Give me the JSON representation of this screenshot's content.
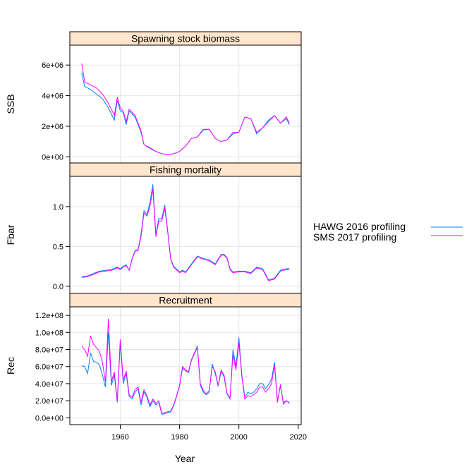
{
  "colors": {
    "strip": "#ffe5cc",
    "grid": "#e6e6e6",
    "series_a": "#0080ff",
    "series_b": "#ff00ff"
  },
  "chart_data": {
    "type": "line",
    "xlabel": "Year",
    "xlim": [
      1943,
      2021
    ],
    "xticks": [
      1960,
      1980,
      2000,
      2020
    ],
    "legend_position": "right",
    "series_names": [
      "HAWG 2016 profiling",
      "SMS 2017 profiling"
    ],
    "panels": [
      {
        "title": "Spawning stock biomass",
        "ylabel": "SSB",
        "ylim": [
          -400000,
          7300000
        ],
        "yticks": [
          0,
          2000000,
          4000000,
          6000000
        ],
        "ytick_labels": [
          "0e+00",
          "2e+06",
          "4e+06",
          "6e+06"
        ],
        "series": [
          {
            "name": "HAWG 2016 profiling",
            "x": [
              1947,
              1948,
              1950,
              1952,
              1954,
              1956,
              1958,
              1959,
              1960,
              1961,
              1962,
              1963,
              1965,
              1967,
              1968,
              1970,
              1972,
              1974,
              1976,
              1978,
              1980,
              1982,
              1984,
              1986,
              1988,
              1990,
              1992,
              1994,
              1996,
              1998,
              2000,
              2002,
              2004,
              2006,
              2008,
              2010,
              2012,
              2014,
              2016,
              2017
            ],
            "values": [
              5500000,
              4600000,
              4400000,
              4100000,
              3800000,
              3200000,
              2400000,
              3700000,
              3000000,
              2900000,
              2100000,
              3000000,
              2600000,
              1600000,
              800000,
              600000,
              350000,
              200000,
              150000,
              200000,
              350000,
              700000,
              1200000,
              1300000,
              1750000,
              1800000,
              1200000,
              1000000,
              1100000,
              1500000,
              1600000,
              2600000,
              2500000,
              1500000,
              1900000,
              2400000,
              2700000,
              2200000,
              2500000,
              2100000
            ]
          },
          {
            "name": "SMS 2017 profiling",
            "x": [
              1947,
              1948,
              1950,
              1952,
              1954,
              1956,
              1958,
              1959,
              1960,
              1961,
              1962,
              1963,
              1965,
              1967,
              1968,
              1970,
              1972,
              1974,
              1976,
              1978,
              1980,
              1982,
              1984,
              1986,
              1988,
              1990,
              1992,
              1994,
              1996,
              1998,
              2000,
              2002,
              2004,
              2006,
              2008,
              2010,
              2012,
              2014,
              2016,
              2017
            ],
            "values": [
              6100000,
              4900000,
              4700000,
              4500000,
              4100000,
              3500000,
              2700000,
              3900000,
              3200000,
              3000000,
              2300000,
              3100000,
              2700000,
              1700000,
              800000,
              550000,
              350000,
              200000,
              150000,
              200000,
              350000,
              700000,
              1200000,
              1300000,
              1800000,
              1800000,
              1200000,
              1000000,
              1100000,
              1600000,
              1600000,
              2600000,
              2500000,
              1600000,
              1900000,
              2300000,
              2700000,
              2200000,
              2600000,
              2200000
            ]
          }
        ]
      },
      {
        "title": "Fishing mortality",
        "ylabel": "Fbar",
        "ylim": [
          -0.09,
          1.38
        ],
        "yticks": [
          0,
          0.5,
          1
        ],
        "ytick_labels": [
          "0.0",
          "0.5",
          "1.0"
        ],
        "series": [
          {
            "name": "HAWG 2016 profiling",
            "x": [
              1947,
              1949,
              1951,
              1953,
              1955,
              1957,
              1959,
              1960,
              1961,
              1962,
              1963,
              1964,
              1965,
              1966,
              1967,
              1968,
              1969,
              1970,
              1971,
              1972,
              1973,
              1974,
              1975,
              1976,
              1977,
              1978,
              1980,
              1981,
              1982,
              1984,
              1986,
              1988,
              1990,
              1992,
              1994,
              1995,
              1996,
              1997,
              1998,
              2000,
              2002,
              2004,
              2006,
              2008,
              2009,
              2010,
              2012,
              2014,
              2016,
              2017
            ],
            "values": [
              0.12,
              0.13,
              0.16,
              0.19,
              0.2,
              0.21,
              0.24,
              0.22,
              0.25,
              0.27,
              0.2,
              0.35,
              0.45,
              0.46,
              0.65,
              0.95,
              0.9,
              1.05,
              1.28,
              0.65,
              0.85,
              0.85,
              1.02,
              0.7,
              0.35,
              0.25,
              0.18,
              0.2,
              0.18,
              0.28,
              0.38,
              0.35,
              0.33,
              0.28,
              0.4,
              0.4,
              0.36,
              0.22,
              0.18,
              0.19,
              0.19,
              0.17,
              0.24,
              0.22,
              0.15,
              0.08,
              0.1,
              0.2,
              0.22,
              0.22
            ]
          },
          {
            "name": "SMS 2017 profiling",
            "x": [
              1947,
              1949,
              1951,
              1953,
              1955,
              1957,
              1959,
              1960,
              1961,
              1962,
              1963,
              1964,
              1965,
              1966,
              1967,
              1968,
              1969,
              1970,
              1971,
              1972,
              1973,
              1974,
              1975,
              1976,
              1977,
              1978,
              1980,
              1981,
              1982,
              1984,
              1986,
              1988,
              1990,
              1992,
              1994,
              1995,
              1996,
              1997,
              1998,
              2000,
              2002,
              2004,
              2006,
              2008,
              2009,
              2010,
              2012,
              2014,
              2016,
              2017
            ],
            "values": [
              0.11,
              0.12,
              0.15,
              0.18,
              0.19,
              0.2,
              0.23,
              0.21,
              0.24,
              0.26,
              0.2,
              0.34,
              0.44,
              0.45,
              0.62,
              0.92,
              0.88,
              1.0,
              1.22,
              0.62,
              0.82,
              0.82,
              0.98,
              0.68,
              0.34,
              0.24,
              0.17,
              0.19,
              0.17,
              0.27,
              0.37,
              0.34,
              0.32,
              0.27,
              0.39,
              0.39,
              0.35,
              0.21,
              0.17,
              0.18,
              0.18,
              0.16,
              0.23,
              0.21,
              0.14,
              0.07,
              0.09,
              0.19,
              0.21,
              0.21
            ]
          }
        ]
      },
      {
        "title": "Recruitment",
        "ylabel": "Rec",
        "ylim": [
          -8000000,
          130000000
        ],
        "yticks": [
          0,
          20000000,
          40000000,
          60000000,
          80000000,
          100000000,
          120000000
        ],
        "ytick_labels": [
          "0.0e+00",
          "2.0e+07",
          "4.0e+07",
          "6.0e+07",
          "8.0e+07",
          "1.0e+08",
          "1.2e+08"
        ],
        "series": [
          {
            "name": "HAWG 2016 profiling",
            "x": [
              1947,
              1948,
              1949,
              1950,
              1951,
              1952,
              1953,
              1954,
              1955,
              1956,
              1957,
              1958,
              1959,
              1960,
              1961,
              1962,
              1963,
              1964,
              1965,
              1966,
              1967,
              1968,
              1969,
              1970,
              1971,
              1972,
              1973,
              1974,
              1975,
              1976,
              1977,
              1978,
              1979,
              1980,
              1981,
              1982,
              1983,
              1984,
              1985,
              1986,
              1987,
              1988,
              1989,
              1990,
              1991,
              1992,
              1993,
              1994,
              1995,
              1996,
              1997,
              1998,
              1999,
              2000,
              2001,
              2002,
              2003,
              2004,
              2005,
              2006,
              2007,
              2008,
              2009,
              2010,
              2011,
              2012,
              2013,
              2014,
              2015,
              2016,
              2017
            ],
            "values": [
              61000000,
              60000000,
              52000000,
              76000000,
              66000000,
              65000000,
              62000000,
              50000000,
              36000000,
              100000000,
              38000000,
              50000000,
              18000000,
              88000000,
              40000000,
              52000000,
              25000000,
              22000000,
              30000000,
              34000000,
              15000000,
              30000000,
              24000000,
              13000000,
              20000000,
              15000000,
              18000000,
              4000000,
              5000000,
              6000000,
              7000000,
              14000000,
              25000000,
              37000000,
              58000000,
              55000000,
              53000000,
              67000000,
              75000000,
              82000000,
              38000000,
              30000000,
              27000000,
              30000000,
              63000000,
              52000000,
              37000000,
              54000000,
              48000000,
              28000000,
              22000000,
              80000000,
              60000000,
              94000000,
              50000000,
              24000000,
              30000000,
              28000000,
              30000000,
              34000000,
              40000000,
              40000000,
              34000000,
              39000000,
              45000000,
              65000000,
              20000000,
              37000000,
              18000000,
              20000000,
              18000000
            ]
          },
          {
            "name": "SMS 2017 profiling",
            "x": [
              1947,
              1948,
              1949,
              1950,
              1951,
              1952,
              1953,
              1954,
              1955,
              1956,
              1957,
              1958,
              1959,
              1960,
              1961,
              1962,
              1963,
              1964,
              1965,
              1966,
              1967,
              1968,
              1969,
              1970,
              1971,
              1972,
              1973,
              1974,
              1975,
              1976,
              1977,
              1978,
              1979,
              1980,
              1981,
              1982,
              1983,
              1984,
              1985,
              1986,
              1987,
              1988,
              1989,
              1990,
              1991,
              1992,
              1993,
              1994,
              1995,
              1996,
              1997,
              1998,
              1999,
              2000,
              2001,
              2002,
              2003,
              2004,
              2005,
              2006,
              2007,
              2008,
              2009,
              2010,
              2011,
              2012,
              2013,
              2014,
              2015,
              2016,
              2017
            ],
            "values": [
              84000000,
              80000000,
              72000000,
              96000000,
              86000000,
              82000000,
              78000000,
              65000000,
              42000000,
              116000000,
              42000000,
              54000000,
              20000000,
              92000000,
              44000000,
              55000000,
              27000000,
              24000000,
              33000000,
              36000000,
              18000000,
              33000000,
              26000000,
              15000000,
              22000000,
              17000000,
              20000000,
              5000000,
              6000000,
              7000000,
              8000000,
              15000000,
              26000000,
              38000000,
              60000000,
              56000000,
              54000000,
              68000000,
              76000000,
              84000000,
              40000000,
              32000000,
              28000000,
              32000000,
              60000000,
              54000000,
              38000000,
              56000000,
              50000000,
              29000000,
              23000000,
              74000000,
              56000000,
              88000000,
              48000000,
              22000000,
              26000000,
              25000000,
              27000000,
              30000000,
              36000000,
              36000000,
              30000000,
              34000000,
              40000000,
              62000000,
              18000000,
              39000000,
              16000000,
              20000000,
              17000000
            ]
          }
        ]
      }
    ]
  }
}
